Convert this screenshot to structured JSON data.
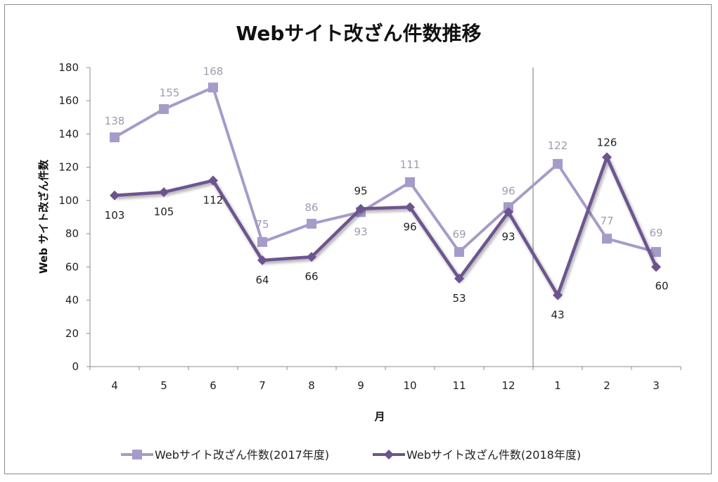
{
  "chart_data": {
    "type": "line",
    "title": "Webサイト改ざん件数推移",
    "xlabel": "月",
    "ylabel": "Web サイト改ざん件数",
    "categories": [
      "4",
      "5",
      "6",
      "7",
      "8",
      "9",
      "10",
      "11",
      "12",
      "1",
      "2",
      "3"
    ],
    "ylim": [
      0,
      180
    ],
    "yticks": [
      "0",
      "20",
      "40",
      "60",
      "80",
      "100",
      "120",
      "140",
      "160",
      "180"
    ],
    "grid": false,
    "legend": "bottom",
    "divider_after_category": "12",
    "series": [
      {
        "name": "Webサイト改ざん件数(2017年度)",
        "marker": "square",
        "color": "#a79bc9",
        "values": [
          138,
          155,
          168,
          75,
          86,
          93,
          111,
          69,
          96,
          122,
          77,
          69
        ]
      },
      {
        "name": "Webサイト改ざん件数(2018年度)",
        "marker": "diamond",
        "color": "#6c548f",
        "values": [
          103,
          105,
          112,
          64,
          66,
          95,
          96,
          53,
          93,
          43,
          126,
          60
        ]
      }
    ]
  }
}
